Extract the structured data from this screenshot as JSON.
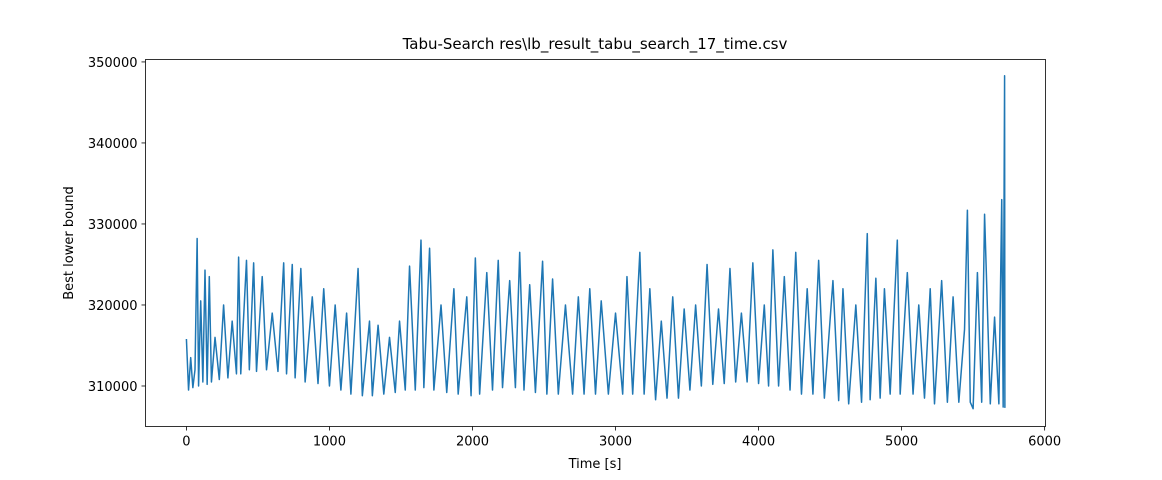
{
  "chart_data": {
    "type": "line",
    "title": "Tabu-Search res\\lb_result_tabu_search_17_time.csv",
    "xlabel": "Time [s]",
    "ylabel": "Best lower bound",
    "xlim": [
      -286,
      6006
    ],
    "ylim": [
      305000,
      350300
    ],
    "xticks": [
      0,
      1000,
      2000,
      3000,
      4000,
      5000,
      6000
    ],
    "yticks": [
      310000,
      320000,
      330000,
      340000,
      350000
    ],
    "series": [
      {
        "name": "Best lower bound",
        "color": "#1f77b4",
        "x": [
          0,
          15,
          30,
          45,
          60,
          75,
          85,
          100,
          115,
          130,
          145,
          160,
          175,
          200,
          230,
          260,
          290,
          320,
          350,
          365,
          380,
          420,
          440,
          470,
          490,
          530,
          560,
          600,
          640,
          680,
          700,
          740,
          760,
          800,
          830,
          880,
          920,
          960,
          1000,
          1040,
          1080,
          1120,
          1150,
          1200,
          1230,
          1280,
          1300,
          1340,
          1380,
          1420,
          1460,
          1490,
          1530,
          1560,
          1600,
          1640,
          1660,
          1700,
          1730,
          1780,
          1820,
          1870,
          1900,
          1960,
          1990,
          2020,
          2050,
          2100,
          2140,
          2180,
          2210,
          2260,
          2300,
          2330,
          2360,
          2400,
          2440,
          2490,
          2520,
          2560,
          2600,
          2650,
          2700,
          2740,
          2780,
          2820,
          2860,
          2900,
          2950,
          3000,
          3050,
          3080,
          3120,
          3170,
          3200,
          3240,
          3280,
          3320,
          3360,
          3400,
          3440,
          3480,
          3520,
          3560,
          3600,
          3640,
          3680,
          3720,
          3760,
          3800,
          3840,
          3880,
          3920,
          3960,
          4000,
          4040,
          4070,
          4100,
          4140,
          4180,
          4220,
          4260,
          4300,
          4340,
          4380,
          4420,
          4460,
          4520,
          4560,
          4590,
          4630,
          4680,
          4720,
          4760,
          4780,
          4820,
          4850,
          4880,
          4920,
          4970,
          4990,
          5040,
          5080,
          5120,
          5160,
          5200,
          5230,
          5280,
          5320,
          5360,
          5400,
          5440,
          5460,
          5480,
          5500,
          5530,
          5560,
          5580,
          5620,
          5650,
          5680,
          5700,
          5710,
          5720,
          5722
        ],
        "values": [
          315800,
          309500,
          313500,
          309800,
          312000,
          328200,
          310000,
          320500,
          310500,
          324300,
          310200,
          323500,
          310500,
          316000,
          310800,
          320000,
          311000,
          318000,
          311500,
          325900,
          311500,
          325500,
          312000,
          325200,
          311800,
          323500,
          312000,
          319000,
          311800,
          325200,
          311500,
          325000,
          311000,
          324500,
          310500,
          321000,
          310300,
          322000,
          310000,
          320000,
          309500,
          319000,
          309000,
          324500,
          308800,
          318000,
          308800,
          317500,
          309000,
          316000,
          309200,
          318000,
          309500,
          324800,
          309500,
          328000,
          309800,
          327000,
          309500,
          320000,
          309200,
          322000,
          309000,
          321000,
          308800,
          325800,
          309000,
          324000,
          309500,
          325500,
          309800,
          323000,
          309800,
          326500,
          309500,
          322500,
          309200,
          325400,
          309000,
          323200,
          309000,
          320000,
          309000,
          321000,
          309000,
          322000,
          309000,
          320500,
          309000,
          319000,
          309000,
          323500,
          309000,
          326500,
          309000,
          322000,
          308300,
          318000,
          308500,
          321000,
          308500,
          319500,
          309500,
          320000,
          310000,
          325000,
          310200,
          319500,
          310300,
          324500,
          310500,
          319000,
          310500,
          325200,
          310300,
          320000,
          310000,
          326800,
          310000,
          323500,
          309500,
          326500,
          309000,
          322000,
          309000,
          325500,
          308500,
          323000,
          308200,
          322000,
          307800,
          320000,
          308000,
          328800,
          308300,
          323300,
          308500,
          322000,
          309000,
          328000,
          309000,
          324000,
          309000,
          320000,
          308500,
          322000,
          307800,
          323000,
          308000,
          321000,
          308000,
          317000,
          331700,
          308000,
          307200,
          324000,
          308000,
          331200,
          307800,
          318500,
          307800,
          333000,
          307400,
          348300,
          307300
        ]
      }
    ]
  }
}
